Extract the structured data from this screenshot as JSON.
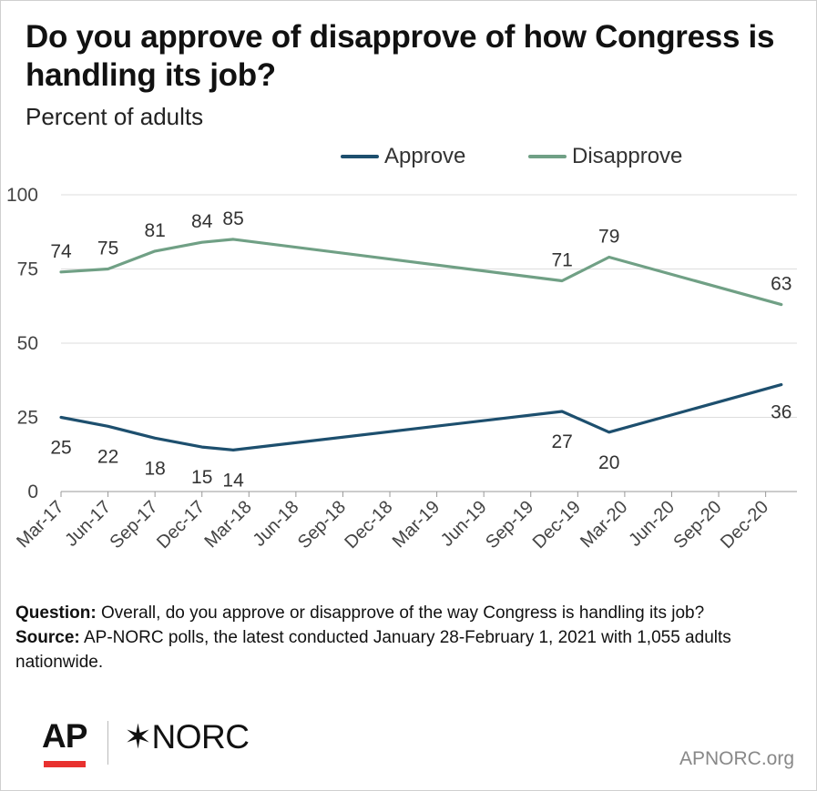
{
  "header": {
    "title": "Do you approve of disapprove of how Congress is handling its job?",
    "subtitle": "Percent of adults"
  },
  "chart_data": {
    "type": "line",
    "title": "Do you approve of disapprove of how Congress is handling its job?",
    "subtitle": "Percent of adults",
    "xlabel": "",
    "ylabel": "",
    "ylim": [
      0,
      100
    ],
    "yticks": [
      0,
      25,
      50,
      75,
      100
    ],
    "xticks": [
      "Mar-17",
      "Jun-17",
      "Sep-17",
      "Dec-17",
      "Mar-18",
      "Jun-18",
      "Sep-18",
      "Dec-18",
      "Mar-19",
      "Jun-19",
      "Sep-19",
      "Dec-19",
      "Mar-20",
      "Jun-20",
      "Sep-20",
      "Dec-20"
    ],
    "xlim": [
      "2017-03",
      "2021-02"
    ],
    "grid": true,
    "legend_position": "top",
    "series": [
      {
        "name": "Approve",
        "color": "#1d4f6e",
        "points": [
          {
            "x": "2017-03",
            "y": 25
          },
          {
            "x": "2017-06",
            "y": 22
          },
          {
            "x": "2017-09",
            "y": 18
          },
          {
            "x": "2017-12",
            "y": 15
          },
          {
            "x": "2018-02",
            "y": 14
          },
          {
            "x": "2019-11",
            "y": 27
          },
          {
            "x": "2020-02",
            "y": 20
          },
          {
            "x": "2021-01",
            "y": 36
          }
        ]
      },
      {
        "name": "Disapprove",
        "color": "#70a085",
        "points": [
          {
            "x": "2017-03",
            "y": 74
          },
          {
            "x": "2017-06",
            "y": 75
          },
          {
            "x": "2017-09",
            "y": 81
          },
          {
            "x": "2017-12",
            "y": 84
          },
          {
            "x": "2018-02",
            "y": 85
          },
          {
            "x": "2019-11",
            "y": 71
          },
          {
            "x": "2020-02",
            "y": 79
          },
          {
            "x": "2021-01",
            "y": 63
          }
        ]
      }
    ]
  },
  "notes": {
    "question_label": "Question:",
    "question_text": " Overall, do you approve or disapprove of the way Congress is handling its job?",
    "source_label": "Source:",
    "source_text": " AP-NORC polls, the latest conducted January 28-February 1, 2021 with 1,055 adults nationwide."
  },
  "footer": {
    "logo_ap": "AP",
    "logo_norc": "✶NORC",
    "site": "APNORC.org"
  },
  "colors": {
    "approve": "#1d4f6e",
    "disapprove": "#70a085",
    "ap_red": "#e8312f",
    "grid": "#dddddd"
  }
}
